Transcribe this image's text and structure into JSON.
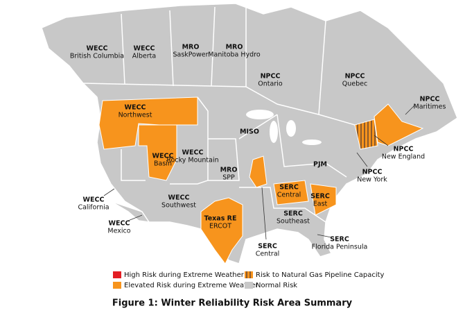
{
  "regions": [
    {
      "name": "WECC",
      "sub": "British Columbia"
    },
    {
      "name": "WECC",
      "sub": "Alberta"
    },
    {
      "name": "MRO",
      "sub": "SaskPower"
    },
    {
      "name": "MRO",
      "sub": "Manitoba Hydro"
    },
    {
      "name": "NPCC",
      "sub": "Ontario"
    },
    {
      "name": "NPCC",
      "sub": "Quebec"
    },
    {
      "name": "NPCC",
      "sub": "Maritimes"
    },
    {
      "name": "WECC",
      "sub": "Northwest"
    },
    {
      "name": "WECC",
      "sub": "Basin"
    },
    {
      "name": "WECC",
      "sub": "Rocky Mountain"
    },
    {
      "name": "MISO"
    },
    {
      "name": "PJM"
    },
    {
      "name": "NPCC",
      "sub": "New England"
    },
    {
      "name": "NPCC",
      "sub": "New York"
    },
    {
      "name": "MRO",
      "sub": "SPP"
    },
    {
      "name": "WECC",
      "sub": "California"
    },
    {
      "name": "WECC",
      "sub": "Southwest"
    },
    {
      "name": "SERC",
      "sub": "Central"
    },
    {
      "name": "SERC",
      "sub": "East"
    },
    {
      "name": "SERC",
      "sub": "Southeast"
    },
    {
      "name": "Texas RE",
      "sub": "ERCOT"
    },
    {
      "name": "WECC",
      "sub": "Mexico"
    },
    {
      "name": "SERC",
      "sub": "Central"
    },
    {
      "name": "SERC",
      "sub": "Florida Peninsula"
    }
  ],
  "legend": [
    {
      "label": "High Risk during Extreme Weather",
      "color": "#e31e24"
    },
    {
      "label": "Risk to Natural Gas Pipeline Capacity",
      "color": "hatch"
    },
    {
      "label": "Elevated Risk during Extreme Weather",
      "color": "#f7941d"
    },
    {
      "label": "Normal Risk",
      "color": "#c8c8c8"
    }
  ],
  "caption": "Figure 1: Winter Reliability Risk Area Summary"
}
